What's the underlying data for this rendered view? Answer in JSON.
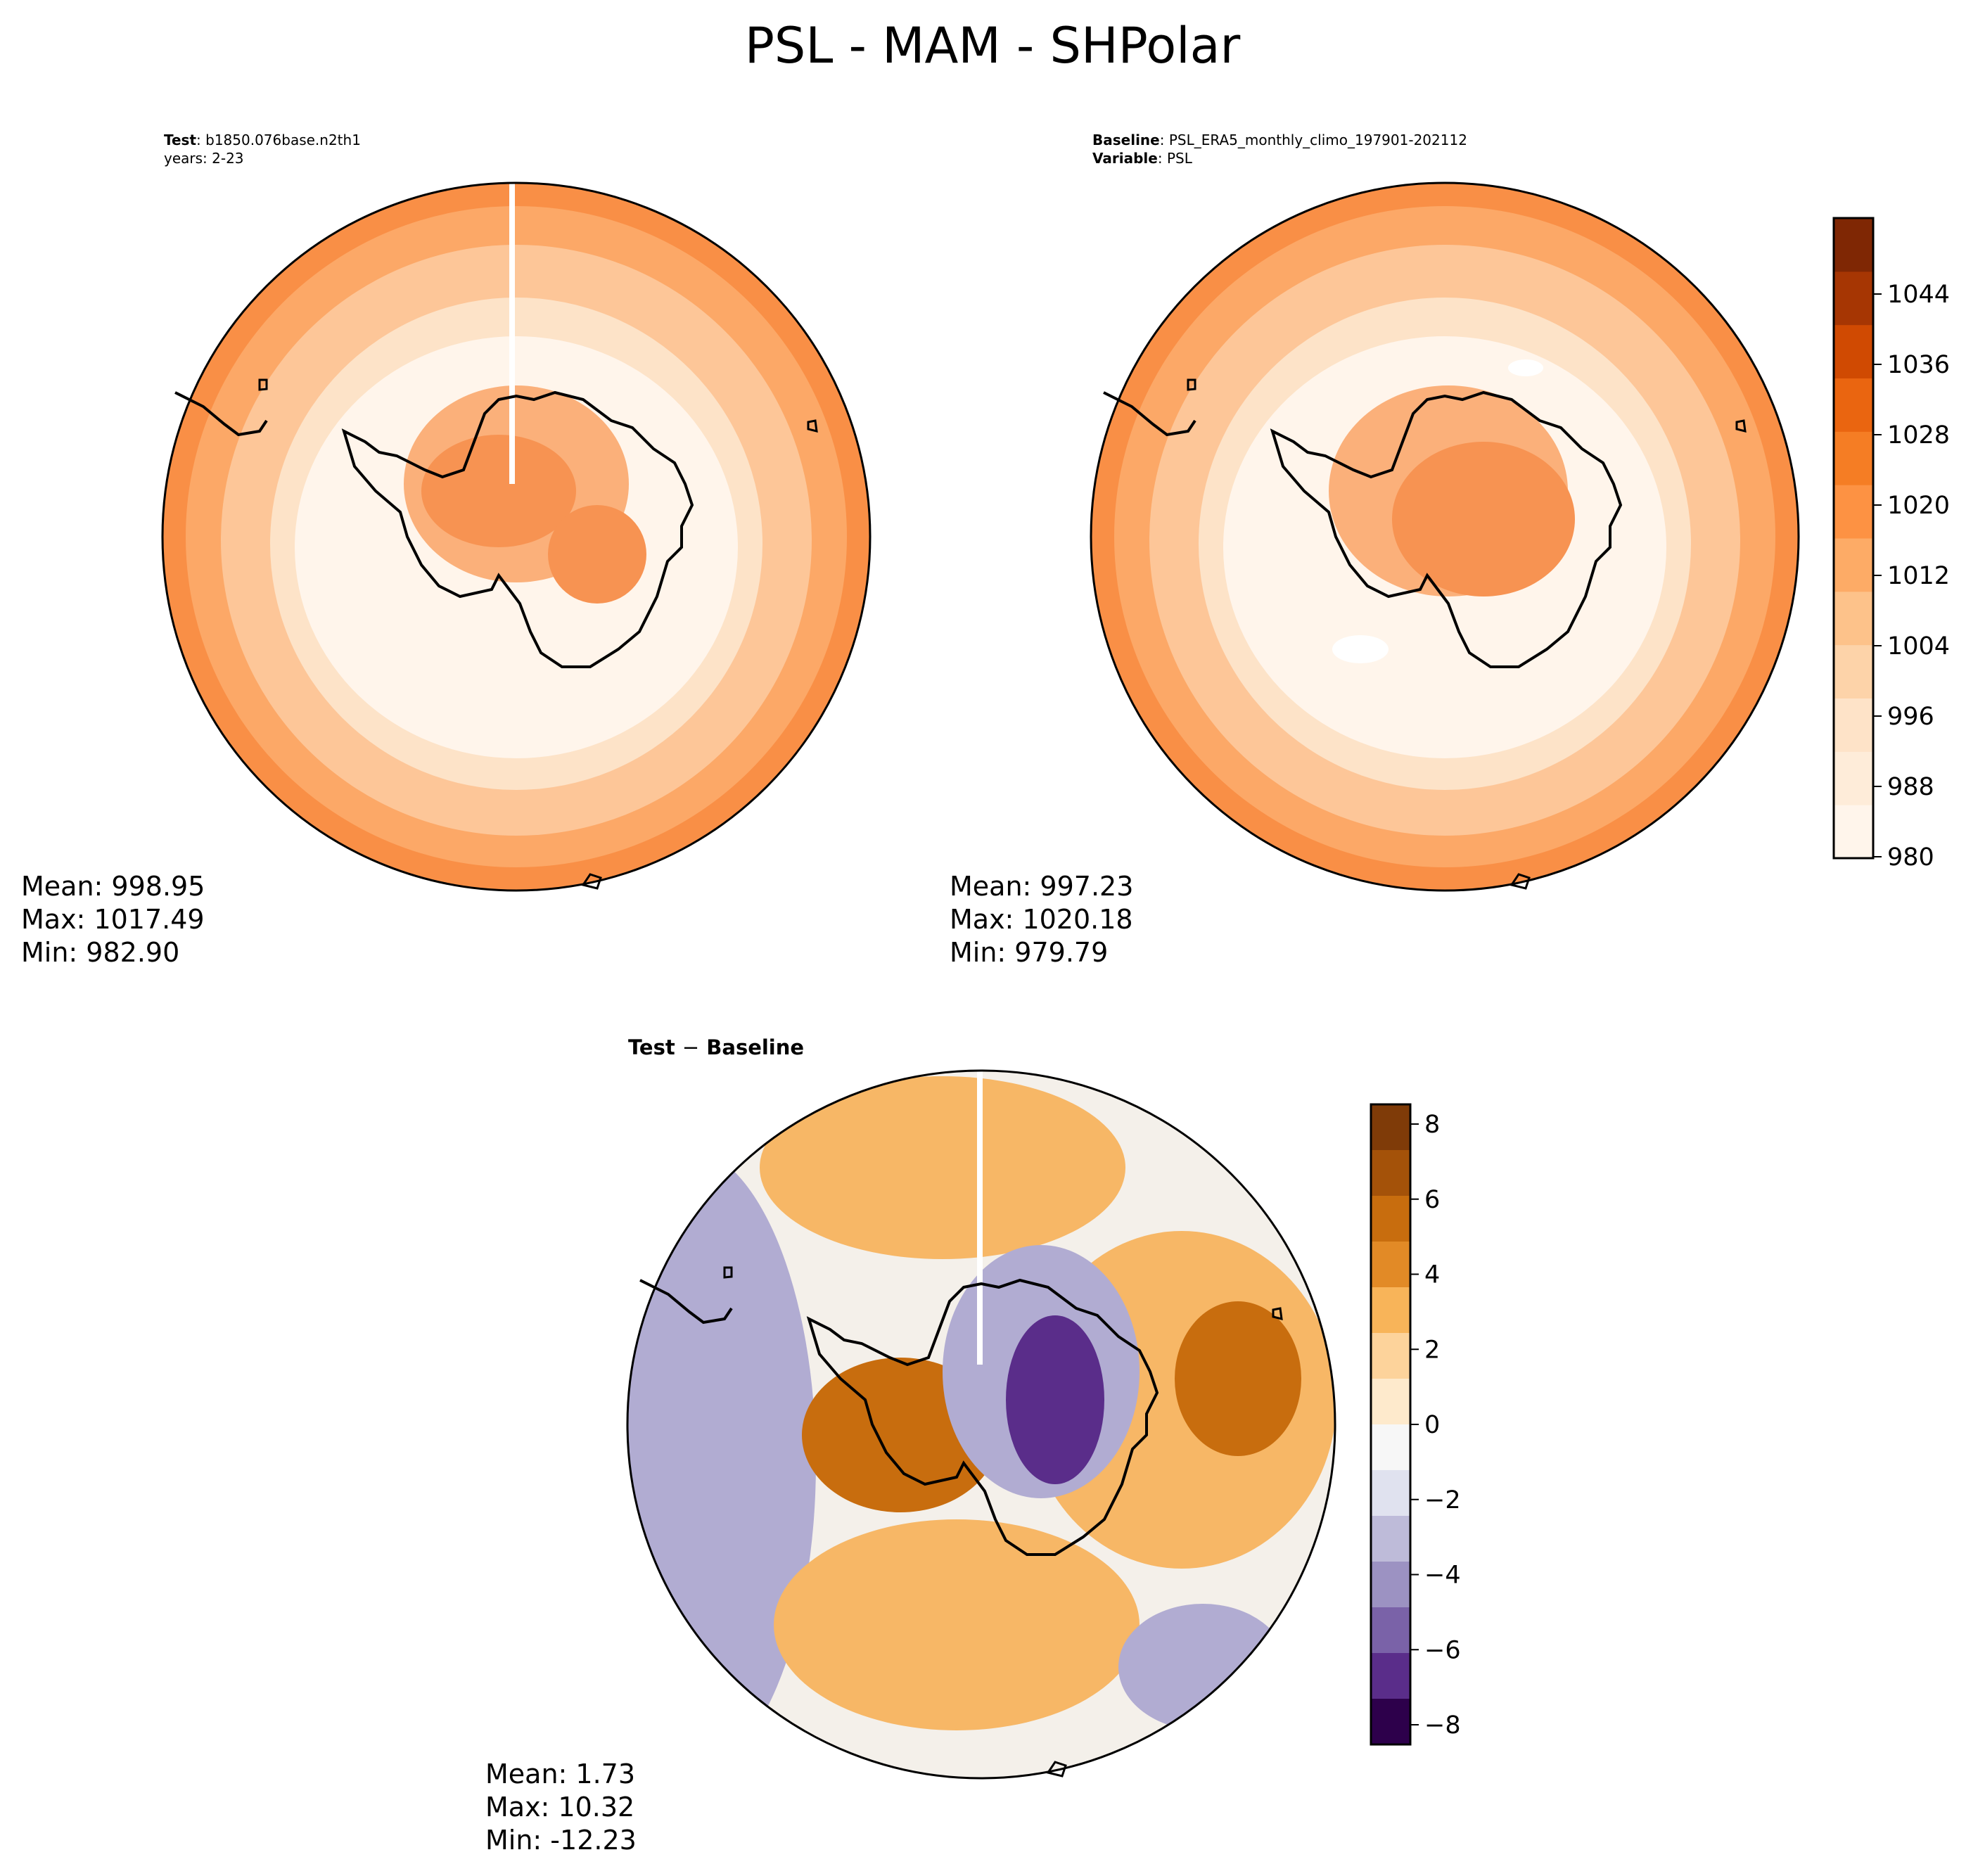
{
  "figure": {
    "title": "PSL - MAM - SHPolar"
  },
  "panels": {
    "test": {
      "header_key": "Test",
      "header_val": "b1850.076base.n2th1",
      "years": "years: 2-23",
      "stats": {
        "mean": "Mean: 998.95",
        "max": "Max: 1017.49",
        "min": "Min: 982.90"
      }
    },
    "baseline": {
      "header_key": "Baseline",
      "header_val": "PSL_ERA5_monthly_climo_197901-202112",
      "variable_key": "Variable",
      "variable_val": "PSL",
      "stats": {
        "mean": "Mean: 997.23",
        "max": "Max: 1020.18",
        "min": "Min: 979.79"
      }
    },
    "diff": {
      "title_a": "Test",
      "title_op": "−",
      "title_b": "Baseline",
      "stats": {
        "mean": "Mean:  1.73",
        "max": "Max: 10.32",
        "min": "Min: -12.23"
      }
    }
  },
  "colorbars": {
    "field": {
      "ticks": [
        "980",
        "988",
        "996",
        "1004",
        "1012",
        "1020",
        "1028",
        "1036",
        "1044"
      ],
      "colors": [
        "#fff5eb",
        "#feecd9",
        "#fee3c8",
        "#fdd3a9",
        "#fdc28a",
        "#fdab66",
        "#fd9243",
        "#f57d24",
        "#ea6510",
        "#d04a02",
        "#a63603",
        "#7f2704"
      ]
    },
    "diff": {
      "ticks": [
        "8",
        "6",
        "4",
        "2",
        "0",
        "−2",
        "−4",
        "−6",
        "−8"
      ],
      "colors": [
        "#7f3b08",
        "#a45209",
        "#c86d0e",
        "#e28a26",
        "#f8b459",
        "#fdd39b",
        "#feeacc",
        "#f7f7f7",
        "#e0e2ef",
        "#bebbd9",
        "#9c92c2",
        "#7a62a8",
        "#5a2d8a",
        "#2d004b"
      ]
    }
  },
  "map_colors": {
    "field_outer": "#f98f46",
    "field_ring2": "#fca867",
    "field_ring3": "#fdc698",
    "field_inner": "#fde3c8",
    "field_light": "#fff5eb",
    "field_land": "#fbb07a",
    "field_land_core": "#f79352",
    "diff_orange": "#f7b766",
    "diff_dark": "#c86d0e",
    "diff_purple": "#b1acd2",
    "diff_neutral": "#f4f0ea",
    "diff_deep_purple": "#5a2d8a"
  }
}
